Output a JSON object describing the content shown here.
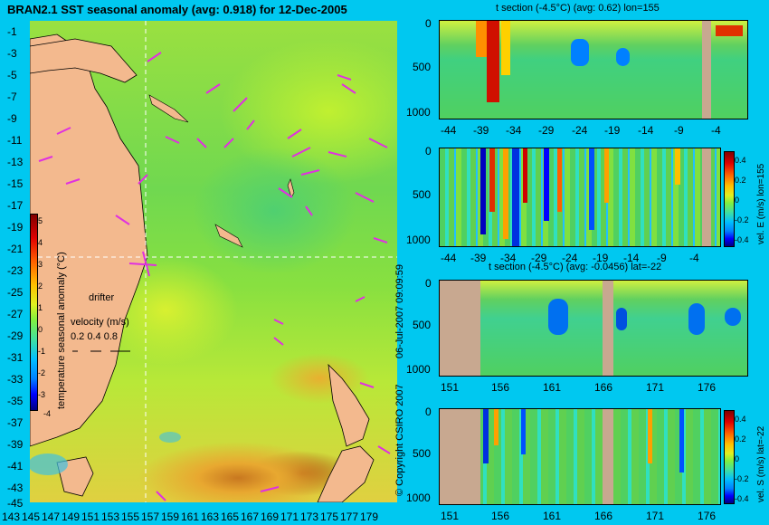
{
  "main_title": "BRAN2.1 SST seasonal anomaly (avg: 0.918) for 12-Dec-2005",
  "colors": {
    "background": "#00c8f0",
    "land": "#f3b98e",
    "section_land": "#c8a890",
    "vector": "#e030e0",
    "colormap": [
      "#000080",
      "#0000ff",
      "#0080ff",
      "#00c0ff",
      "#40e0a0",
      "#80f040",
      "#e0f020",
      "#ffc000",
      "#ff6000",
      "#e00000",
      "#800000"
    ]
  },
  "map": {
    "colorbar_label": "temperature seasonal anomaly (°C)",
    "colorbar_ticks": [
      "5",
      "4",
      "3",
      "2",
      "1",
      "0",
      "-1",
      "-2",
      "-3",
      "-4"
    ],
    "legend_title": "drifter",
    "legend_velocity_label": "velocity (m/s)",
    "legend_velocity_values": "0.2 0.4 0.8",
    "lat_ticks": [
      "-1",
      "-3",
      "-5",
      "-7",
      "-9",
      "-11",
      "-13",
      "-15",
      "-17",
      "-19",
      "-21",
      "-23",
      "-25",
      "-27",
      "-29",
      "-31",
      "-33",
      "-35",
      "-37",
      "-39",
      "-41",
      "-43",
      "-45"
    ],
    "lon_ticks": [
      "143",
      "145",
      "147",
      "149",
      "151",
      "153",
      "155",
      "157",
      "159",
      "161",
      "163",
      "165",
      "167",
      "169",
      "171",
      "173",
      "175",
      "177",
      "179"
    ],
    "crosshair": {
      "lon": 155,
      "lat": -22
    }
  },
  "side_text": {
    "date_stamp": "06-Jul-2007 09:09:59",
    "copyright": "© Copyright CSIRO 2007"
  },
  "chart_data": [
    {
      "type": "heatmap",
      "title": "t section (-4.5°C) (avg: 0.62) lon=155",
      "xlabel": "",
      "ylabel": "",
      "x_ticks": [
        "-44",
        "-39",
        "-34",
        "-29",
        "-24",
        "-19",
        "-14",
        "-9",
        "-4"
      ],
      "y_ticks": [
        "0",
        "500",
        "1000"
      ],
      "ylim": [
        1050,
        0
      ]
    },
    {
      "type": "heatmap",
      "title": "",
      "colorbar_label": "vel. E (m/s) lon=155",
      "colorbar_ticks": [
        "0.4",
        "0.2",
        "0",
        "-0.2",
        "-0.4"
      ],
      "x_ticks": [
        "-44",
        "-39",
        "-34",
        "-29",
        "-24",
        "-19",
        "-14",
        "-9",
        "-4"
      ],
      "y_ticks": [
        "0",
        "500",
        "1000"
      ],
      "ylim": [
        1050,
        0
      ]
    },
    {
      "type": "heatmap",
      "title": "t section (-4.5°C) (avg: -0.0456) lat=-22",
      "x_ticks": [
        "151",
        "156",
        "161",
        "166",
        "171",
        "176"
      ],
      "y_ticks": [
        "0",
        "500",
        "1000"
      ],
      "ylim": [
        1050,
        0
      ]
    },
    {
      "type": "heatmap",
      "title": "",
      "colorbar_label": "vel. S (m/s) lat=-22",
      "colorbar_ticks": [
        "0.4",
        "0.2",
        "0",
        "-0.2",
        "-0.4"
      ],
      "x_ticks": [
        "151",
        "156",
        "161",
        "166",
        "171",
        "176"
      ],
      "y_ticks": [
        "0",
        "500",
        "1000"
      ],
      "ylim": [
        1050,
        0
      ]
    }
  ]
}
